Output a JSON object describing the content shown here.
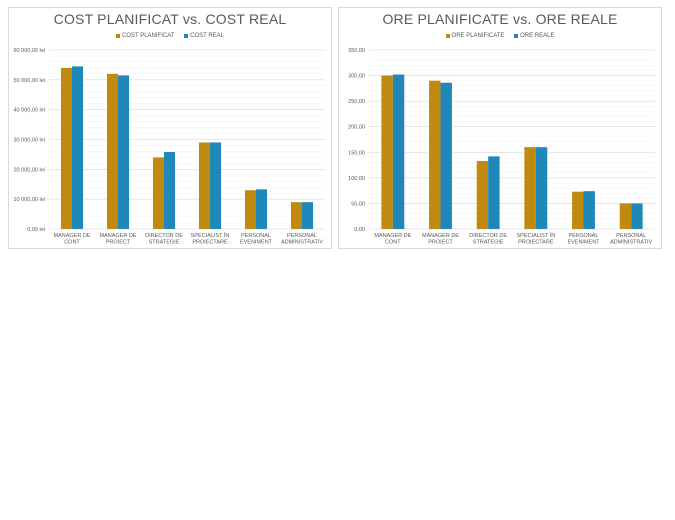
{
  "chart_data": [
    {
      "type": "bar",
      "title": "COST PLANIFICAT vs. COST REAL",
      "categories": [
        "MANAGER DE CONT",
        "MANAGER DE PROIECT",
        "DIRECTOR DE STRATEGIE",
        "SPECIALIST ÎN PROIECTARE",
        "PERSONAL EVENIMENT",
        "PERSONAL ADMINISTRATIV"
      ],
      "category_lines": [
        [
          "MANAGER DE",
          "CONT"
        ],
        [
          "MANAGER DE",
          "PROIECT"
        ],
        [
          "DIRECTOR DE",
          "STRATEGIE"
        ],
        [
          "SPECIALIST ÎN",
          "PROIECTARE"
        ],
        [
          "PERSONAL",
          "EVENIMENT"
        ],
        [
          "PERSONAL",
          "ADMINISTRATIV"
        ]
      ],
      "series": [
        {
          "name": "COST PLANIFICAT",
          "color": "#c08a10",
          "values": [
            54000,
            52000,
            24000,
            29000,
            13000,
            9000
          ]
        },
        {
          "name": "COST REAL",
          "color": "#1f88b8",
          "values": [
            54500,
            51500,
            25800,
            29000,
            13300,
            9000
          ]
        }
      ],
      "ylim": [
        0,
        60000
      ],
      "yticks": [
        0,
        10000,
        20000,
        30000,
        40000,
        50000,
        60000
      ],
      "ytick_labels": [
        "0,00 lei",
        "10 000,00 lei",
        "20 000,00 lei",
        "30 000,00 lei",
        "40 000,00 lei",
        "50 000,00 lei",
        "60 000,00 lei"
      ],
      "grid": true,
      "legend_position": "top"
    },
    {
      "type": "bar",
      "title": "ORE PLANIFICATE vs. ORE REALE",
      "categories": [
        "MANAGER DE CONT",
        "MANAGER DE PROIECT",
        "DIRECTOR DE STRATEGIE",
        "SPECIALIST ÎN PROIECTARE",
        "PERSONAL EVENIMENT",
        "PERSONAL ADMINISTRATIV"
      ],
      "category_lines": [
        [
          "MANAGER DE",
          "CONT"
        ],
        [
          "MANAGER DE",
          "PROIECT"
        ],
        [
          "DIRECTOR DE",
          "STRATEGIE"
        ],
        [
          "SPECIALIST ÎN",
          "PROIECTARE"
        ],
        [
          "PERSONAL",
          "EVENIMENT"
        ],
        [
          "PERSONAL",
          "ADMINISTRATIV"
        ]
      ],
      "series": [
        {
          "name": "ORE PLANIFICATE",
          "color": "#c08a10",
          "values": [
            300,
            290,
            133,
            160,
            73,
            50
          ]
        },
        {
          "name": "ORE REALE",
          "color": "#1f88b8",
          "values": [
            302,
            286,
            142,
            160,
            74,
            50
          ]
        }
      ],
      "ylim": [
        0,
        350
      ],
      "yticks": [
        0,
        50,
        100,
        150,
        200,
        250,
        300,
        350
      ],
      "ytick_labels": [
        "0,00",
        "50,00",
        "100,00",
        "150,00",
        "200,00",
        "250,00",
        "300,00",
        "350,00"
      ],
      "grid": true,
      "legend_position": "top"
    }
  ]
}
